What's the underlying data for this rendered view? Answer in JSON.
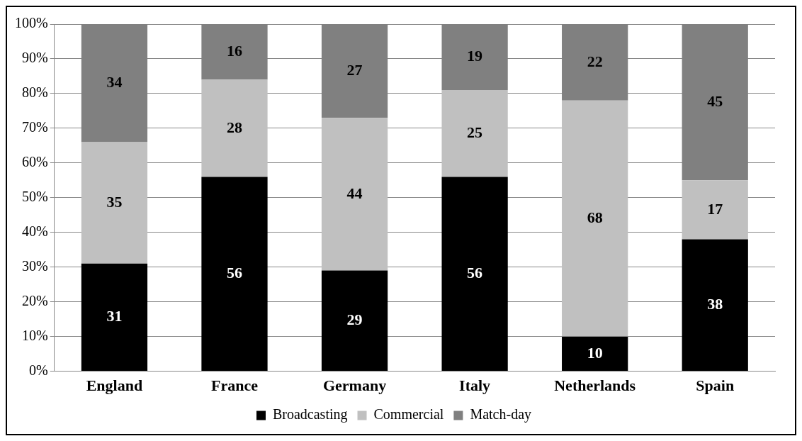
{
  "chart_data": {
    "type": "bar",
    "stacked": true,
    "categories": [
      "England",
      "France",
      "Germany",
      "Italy",
      "Netherlands",
      "Spain"
    ],
    "series": [
      {
        "name": "Broadcasting",
        "color": "#000000",
        "values": [
          31,
          56,
          29,
          56,
          10,
          38
        ]
      },
      {
        "name": "Commercial",
        "color": "#c0c0c0",
        "values": [
          35,
          28,
          44,
          25,
          68,
          17
        ]
      },
      {
        "name": "Match-day",
        "color": "#808080",
        "values": [
          34,
          16,
          27,
          19,
          22,
          45
        ]
      }
    ],
    "ylim": [
      0,
      100
    ],
    "yticks": [
      {
        "value": 0,
        "label": "0%"
      },
      {
        "value": 10,
        "label": "10%"
      },
      {
        "value": 20,
        "label": "20%"
      },
      {
        "value": 30,
        "label": "30%"
      },
      {
        "value": 40,
        "label": "40%"
      },
      {
        "value": 50,
        "label": "50%"
      },
      {
        "value": 60,
        "label": "60%"
      },
      {
        "value": 70,
        "label": "70%"
      },
      {
        "value": 80,
        "label": "80%"
      },
      {
        "value": 90,
        "label": "90%"
      },
      {
        "value": 100,
        "label": "100%"
      }
    ],
    "grid": "y",
    "legend": "bottom",
    "data_labels": true
  }
}
